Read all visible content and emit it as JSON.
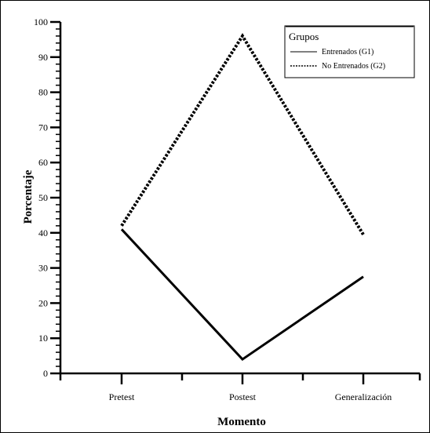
{
  "chart_data": {
    "type": "line",
    "categories": [
      "Pretest",
      "Postest",
      "Generalización"
    ],
    "series": [
      {
        "name": "Entrenados (G1)",
        "values": [
          41,
          4,
          27.5
        ],
        "style": "solid"
      },
      {
        "name": "No Entrenados (G2)",
        "values": [
          42,
          96,
          39.5
        ],
        "style": "dotted"
      }
    ],
    "ylim": [
      0,
      100
    ],
    "yticks": [
      0,
      10,
      20,
      30,
      40,
      50,
      60,
      70,
      80,
      90,
      100
    ],
    "xlabel": "Momento",
    "ylabel": "Porcentaje",
    "legend": {
      "title": "Grupos",
      "placement": "top-right"
    },
    "grid": false,
    "colors": {
      "line": "#000000",
      "background": "#ffffff"
    }
  }
}
